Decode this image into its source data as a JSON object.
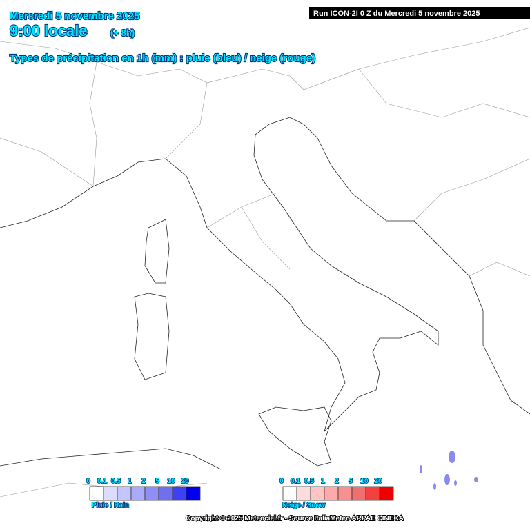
{
  "header": {
    "date": "Mercredi 5 novembre 2025",
    "time": "9:00 locale",
    "offset": "(+ 8h)",
    "subtitle": "Types de précipitation en 1h (mm) : pluie (bleu) / neige (rouge)"
  },
  "run": "Run ICON-2I 0 Z du Mercredi 5 novembre 2025",
  "legends": [
    {
      "name": "Pluie / Rain",
      "labels": [
        "0",
        "0.1",
        "0.5",
        "1",
        "2",
        "5",
        "10",
        "20"
      ],
      "colors": [
        "#ffffff",
        "#dcdcff",
        "#c4c4ff",
        "#aaaaff",
        "#8f8ff7",
        "#6f6ff0",
        "#3f3ff5",
        "#0000ee"
      ]
    },
    {
      "name": "Neige / Snow",
      "labels": [
        "0",
        "0.1",
        "0.5",
        "1",
        "2",
        "5",
        "10",
        "20"
      ],
      "colors": [
        "#ffffff",
        "#ffdcdc",
        "#ffc4c4",
        "#ffaaaa",
        "#f79090",
        "#f07070",
        "#f54040",
        "#ee0000"
      ]
    }
  ],
  "copyright": "Copyright © 2025 Meteociel.fr - Source ItaliaMeteo ARPAE CINECA"
}
